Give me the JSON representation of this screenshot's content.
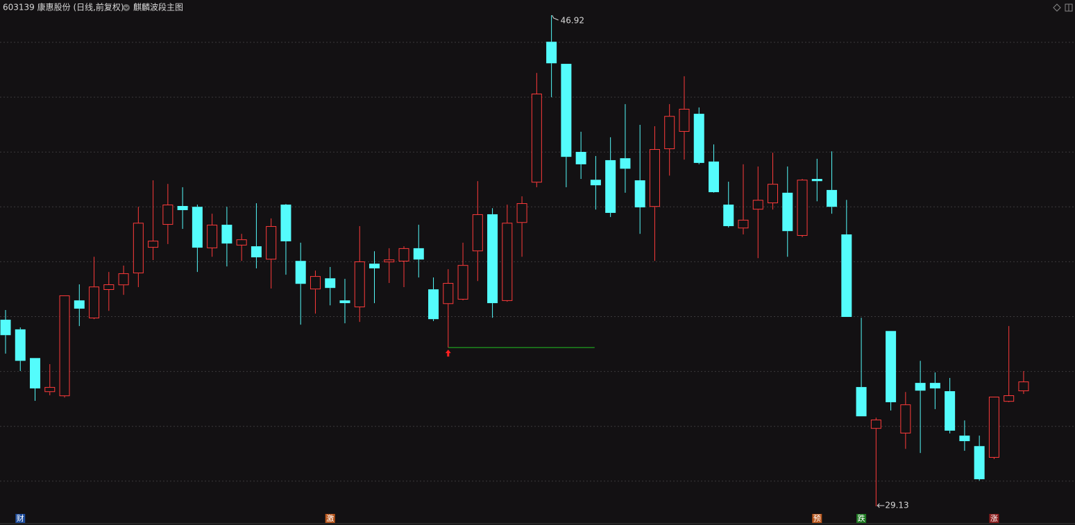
{
  "chart_data": {
    "type": "candlestick",
    "title": "603139 康惠股份 (日线,前复权)",
    "indicator": "麒麟波段主图",
    "up_color": "#ff3b3b",
    "down_color": "#54fcfc",
    "open": [
      35.89,
      35.54,
      34.5,
      33.27,
      33.12,
      36.59,
      35.94,
      36.97,
      37.14,
      37.57,
      38.5,
      39.33,
      40.01,
      39.98,
      38.48,
      39.33,
      38.58,
      38.55,
      38.07,
      40.06,
      38.02,
      36.99,
      37.39,
      36.59,
      36.34,
      37.92,
      37.97,
      38.0,
      38.48,
      36.99,
      36.46,
      36.62,
      38.37,
      39.71,
      36.57,
      39.4,
      40.86,
      45.96,
      45.16,
      41.97,
      40.96,
      41.67,
      41.74,
      40.94,
      39.98,
      42.07,
      42.7,
      43.35,
      41.62,
      40.06,
      39.2,
      39.88,
      40.11,
      40.49,
      38.93,
      40.99,
      40.59,
      38.98,
      33.45,
      31.94,
      35.48,
      31.77,
      33.6,
      33.6,
      33.3,
      31.69,
      31.31,
      30.89,
      32.92,
      33.3
    ],
    "high": [
      36.24,
      35.61,
      34.5,
      34.28,
      36.77,
      37.17,
      38.17,
      37.62,
      37.85,
      39.98,
      40.94,
      40.81,
      40.69,
      40.06,
      39.73,
      39.98,
      39.0,
      40.11,
      39.56,
      40.08,
      38.68,
      37.67,
      37.8,
      37.37,
      39.28,
      38.37,
      38.48,
      38.55,
      39.33,
      37.42,
      37.72,
      38.68,
      40.91,
      39.93,
      40.06,
      40.36,
      44.83,
      46.92,
      45.16,
      42.7,
      41.82,
      42.5,
      43.7,
      42.95,
      42.9,
      43.7,
      44.71,
      43.58,
      42.24,
      40.89,
      41.52,
      41.44,
      41.94,
      41.44,
      40.99,
      41.72,
      41.99,
      40.23,
      35.96,
      32.34,
      35.48,
      33.27,
      34.4,
      33.98,
      33.78,
      32.24,
      31.69,
      33.1,
      35.66,
      34.03
    ],
    "low": [
      34.66,
      34.03,
      32.95,
      33.15,
      33.07,
      35.66,
      35.91,
      36.21,
      36.79,
      37.07,
      38.05,
      38.63,
      39.18,
      37.62,
      38.17,
      37.82,
      38.02,
      37.75,
      37.02,
      37.52,
      35.71,
      36.11,
      36.41,
      35.76,
      35.81,
      36.49,
      37.22,
      37.07,
      37.42,
      35.84,
      34.88,
      36.59,
      37.29,
      35.96,
      36.54,
      38.17,
      40.69,
      43.95,
      40.69,
      40.99,
      39.88,
      39.61,
      40.49,
      39.0,
      38.02,
      41.11,
      41.69,
      41.52,
      40.49,
      39.23,
      38.98,
      38.12,
      39.88,
      38.17,
      38.88,
      40.18,
      39.73,
      35.99,
      32.39,
      29.13,
      32.6,
      31.21,
      31.06,
      32.65,
      31.77,
      31.14,
      30.06,
      30.84,
      32.9,
      33.2
    ],
    "close": [
      35.33,
      34.4,
      33.4,
      33.45,
      36.77,
      36.29,
      37.09,
      37.17,
      37.57,
      39.4,
      38.75,
      40.06,
      39.86,
      38.5,
      39.33,
      38.65,
      38.8,
      38.15,
      39.28,
      38.73,
      37.19,
      37.47,
      37.04,
      36.49,
      38.0,
      37.75,
      38.07,
      38.48,
      38.07,
      35.91,
      37.22,
      37.87,
      39.71,
      36.49,
      39.4,
      40.11,
      44.08,
      45.18,
      41.79,
      41.52,
      40.76,
      39.76,
      41.36,
      39.96,
      42.07,
      43.27,
      43.53,
      41.57,
      40.51,
      39.28,
      39.51,
      40.23,
      40.81,
      39.1,
      40.96,
      40.91,
      39.98,
      35.99,
      32.39,
      32.27,
      32.9,
      32.82,
      33.32,
      33.4,
      31.87,
      31.49,
      30.11,
      33.1,
      33.15,
      33.65
    ],
    "signals": [
      null,
      {
        "text": "财",
        "color": "#1d4c9c"
      },
      null,
      null,
      null,
      null,
      null,
      null,
      null,
      null,
      null,
      null,
      null,
      null,
      null,
      null,
      null,
      null,
      null,
      null,
      null,
      null,
      {
        "text": "激",
        "color": "#b8561c"
      },
      null,
      null,
      null,
      null,
      null,
      null,
      null,
      null,
      null,
      null,
      null,
      null,
      null,
      null,
      null,
      null,
      null,
      null,
      null,
      null,
      null,
      null,
      null,
      null,
      null,
      null,
      null,
      null,
      null,
      null,
      null,
      null,
      {
        "text": "预",
        "color": "#b8561c"
      },
      null,
      null,
      {
        "text": "跌",
        "color": "#1e7a22"
      },
      null,
      null,
      null,
      null,
      null,
      null,
      null,
      null,
      {
        "text": "涨",
        "color": "#8a1c1c"
      },
      null,
      null
    ]
  }
}
